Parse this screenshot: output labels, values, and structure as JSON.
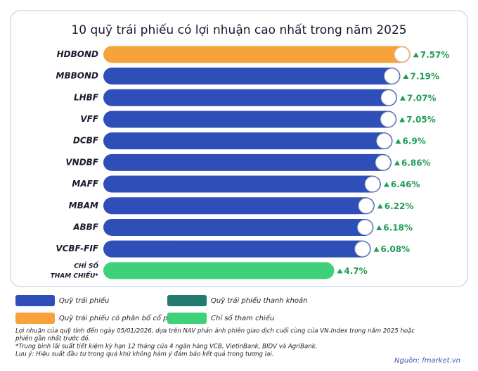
{
  "chart_data": {
    "type": "bar",
    "orientation": "horizontal",
    "title": "10 quỹ trái phiếu có lợi nhuận cao nhất trong năm 2025",
    "categories": [
      "HDBOND",
      "MBBOND",
      "LHBF",
      "VFF",
      "DCBF",
      "VNDBF",
      "MAFF",
      "MBAM",
      "ABBF",
      "VCBF-FIF",
      "CHỈ SỐ THAM CHIẾU*"
    ],
    "series": [
      {
        "name": "Quỹ trái phiếu",
        "color": "#2f4fb8",
        "values": [
          null,
          7.19,
          7.07,
          7.05,
          6.9,
          6.86,
          6.46,
          6.22,
          6.18,
          6.08,
          null
        ],
        "value_labels": [
          null,
          "7.19%",
          "7.07%",
          "7.05%",
          "6.9%",
          "6.86%",
          "6.46%",
          "6.22%",
          "6.18%",
          "6.08%",
          null
        ]
      },
      {
        "name": "Quỹ trái phiếu thanh khoản",
        "color": "#237a6e",
        "values": [
          null,
          null,
          null,
          null,
          null,
          null,
          null,
          null,
          null,
          null,
          null
        ],
        "value_labels": [
          null,
          null,
          null,
          null,
          null,
          null,
          null,
          null,
          null,
          null,
          null
        ]
      },
      {
        "name": "Quỹ trái phiếu có phân bổ cổ phiếu",
        "color": "#f7a23a",
        "values": [
          7.57,
          null,
          null,
          null,
          null,
          null,
          null,
          null,
          null,
          null,
          null
        ],
        "value_labels": [
          "7.57%",
          null,
          null,
          null,
          null,
          null,
          null,
          null,
          null,
          null,
          null
        ]
      },
      {
        "name": "Chỉ số tham chiếu",
        "color": "#3fd07a",
        "values": [
          null,
          null,
          null,
          null,
          null,
          null,
          null,
          null,
          null,
          null,
          4.7
        ],
        "value_labels": [
          null,
          null,
          null,
          null,
          null,
          null,
          null,
          null,
          null,
          null,
          "4.7%"
        ]
      }
    ],
    "xlim": [
      -4,
      8
    ],
    "notes": [
      "Lợi nhuận của quỹ tính đến ngày 05/01/2026, dựa trên NAV phản ánh phiên giao dịch cuối cùng của VN-Index trong năm 2025 hoặc",
      "phiên gần nhất trước đó.",
      "*Trung bình lãi suất tiết kiệm kỳ hạn 12 tháng của 4 ngân hàng VCB, VietinBank, BIDV và AgriBank.",
      "Lưu ý: Hiệu suất đầu tư trong quá khứ không hàm ý đảm bảo kết quả trong tương lai."
    ],
    "source": "Nguồn: fmarket.vn"
  }
}
